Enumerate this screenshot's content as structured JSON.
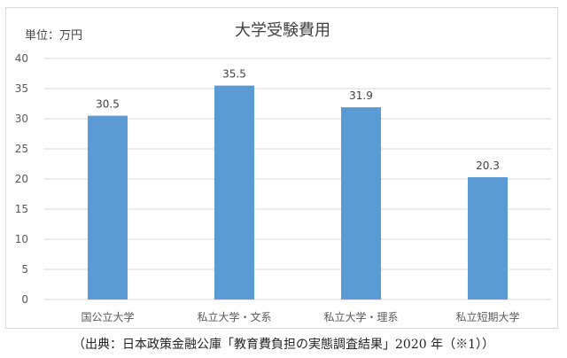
{
  "chart_data": {
    "type": "bar",
    "title": "大学受験費用",
    "unit_label": "単位：万円",
    "categories": [
      "国公立大学",
      "私立大学・文系",
      "私立大学・理系",
      "私立短期大学"
    ],
    "values": [
      30.5,
      35.5,
      31.9,
      20.3
    ],
    "data_labels": [
      "30.5",
      "35.5",
      "31.9",
      "20.3"
    ],
    "ylim": [
      0,
      40
    ],
    "y_ticks": [
      "0",
      "5",
      "10",
      "15",
      "20",
      "25",
      "30",
      "35",
      "40"
    ],
    "grid": true,
    "bar_color": "#5b9bd5"
  },
  "source_note": "（出典：日本政策金融公庫「教育費負担の実態調査結果」2020 年（※1））"
}
